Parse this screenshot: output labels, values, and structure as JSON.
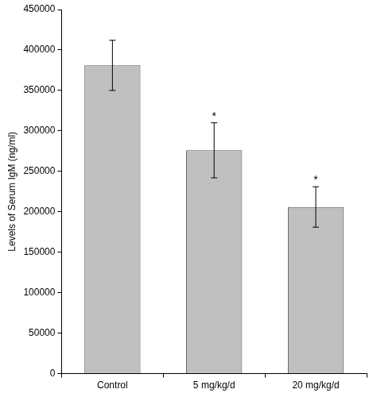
{
  "chart_data": {
    "type": "bar",
    "y_label": "Levels of Serum IgM (ng/ml)",
    "categories": [
      "Control",
      "5 mg/kg/d",
      "20 mg/kg/d"
    ],
    "values": [
      381000,
      276000,
      206000
    ],
    "errors": [
      31000,
      34000,
      25000
    ],
    "annotations": [
      null,
      "*",
      "*"
    ],
    "color": "#c0c0c0",
    "ylim": [
      0,
      450000
    ],
    "yticks": [
      0,
      50000,
      100000,
      150000,
      200000,
      250000,
      300000,
      350000,
      400000,
      450000
    ],
    "grid": false
  }
}
